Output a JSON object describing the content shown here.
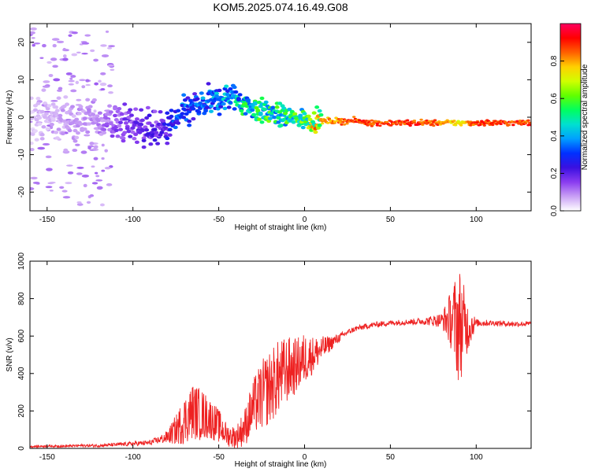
{
  "title": "KOM5.2025.074.16.49.G08",
  "chart_data": [
    {
      "type": "heatmap",
      "xlabel": "Height of straight line (km)",
      "ylabel": "Frequency (Hz)",
      "xlim": [
        -160,
        132
      ],
      "ylim": [
        -25,
        25
      ],
      "xticks": [
        -150,
        -100,
        -50,
        0,
        50,
        100
      ],
      "yticks": [
        -20,
        -10,
        0,
        10,
        20
      ],
      "colorbar": {
        "label": "Normalized spectral amplitude",
        "range": [
          0,
          1
        ],
        "ticks": [
          "0.0",
          "0.2",
          "0.4",
          "0.6",
          "0.8"
        ],
        "colors": [
          "#ffffff",
          "#c9a0f5",
          "#8a3cf0",
          "#3a10e0",
          "#0030ff",
          "#00a0ff",
          "#00e0d0",
          "#00ff60",
          "#60ff00",
          "#d0ff00",
          "#ffd000",
          "#ff6000",
          "#ff0000",
          "#ff0060"
        ]
      },
      "ridge": {
        "x": [
          -160,
          -140,
          -120,
          -110,
          -100,
          -90,
          -85,
          -80,
          -75,
          -70,
          -65,
          -60,
          -55,
          -50,
          -45,
          -40,
          -35,
          -30,
          -25,
          -20,
          -15,
          -10,
          -5,
          0,
          5,
          10,
          20,
          30,
          40,
          50,
          60,
          70,
          80,
          90,
          100,
          110,
          120,
          130
        ],
        "y": [
          0.0,
          -0.5,
          -1.0,
          -1.5,
          -2.0,
          -3.0,
          -3.5,
          -3.0,
          -1.0,
          1.0,
          2.5,
          3.0,
          4.0,
          4.5,
          5.5,
          5.0,
          3.5,
          2.5,
          1.5,
          1.0,
          0.5,
          0.0,
          -0.5,
          -0.5,
          -1.0,
          -1.0,
          -1.0,
          -1.0,
          -1.5,
          -1.5,
          -1.5,
          -1.5,
          -1.5,
          -1.5,
          -1.5,
          -1.5,
          -1.5,
          -1.5
        ],
        "amplitude": [
          0.05,
          0.08,
          0.1,
          0.15,
          0.18,
          0.2,
          0.2,
          0.25,
          0.3,
          0.35,
          0.3,
          0.35,
          0.35,
          0.4,
          0.4,
          0.45,
          0.5,
          0.5,
          0.55,
          0.55,
          0.5,
          0.55,
          0.55,
          0.6,
          0.7,
          0.8,
          0.85,
          0.9,
          0.9,
          0.9,
          0.9,
          0.9,
          0.85,
          0.75,
          0.9,
          0.9,
          0.9,
          0.9
        ]
      }
    },
    {
      "type": "line",
      "xlabel": "Height of straight line (km)",
      "ylabel": "SNR (v/v)",
      "xlim": [
        -160,
        132
      ],
      "ylim": [
        0,
        1000
      ],
      "xticks": [
        -150,
        -100,
        -50,
        0,
        50,
        100
      ],
      "yticks": [
        0,
        200,
        400,
        600,
        800,
        1000
      ],
      "color": "#ee2222",
      "series": [
        {
          "x": [
            -160,
            -150,
            -140,
            -130,
            -120,
            -110,
            -100,
            -90,
            -85,
            -80,
            -75,
            -70,
            -65,
            -60,
            -55,
            -50,
            -45,
            -40,
            -35,
            -30,
            -25,
            -20,
            -15,
            -10,
            -5,
            0,
            5,
            10,
            15,
            20,
            25,
            30,
            40,
            50,
            60,
            70,
            80,
            85,
            90,
            95,
            100,
            110,
            120,
            132
          ],
          "values": [
            10,
            12,
            12,
            15,
            15,
            20,
            25,
            30,
            45,
            60,
            100,
            150,
            200,
            180,
            160,
            120,
            70,
            60,
            110,
            220,
            280,
            330,
            380,
            420,
            440,
            480,
            500,
            530,
            560,
            590,
            620,
            640,
            660,
            670,
            675,
            680,
            685,
            690,
            660,
            650,
            670,
            670,
            665,
            665
          ],
          "spread": [
            6,
            6,
            6,
            8,
            8,
            10,
            12,
            15,
            20,
            35,
            80,
            130,
            150,
            140,
            110,
            90,
            60,
            60,
            100,
            150,
            190,
            200,
            200,
            180,
            150,
            140,
            100,
            70,
            40,
            25,
            15,
            15,
            15,
            15,
            15,
            20,
            40,
            150,
            330,
            140,
            20,
            15,
            15,
            15
          ]
        }
      ]
    }
  ]
}
